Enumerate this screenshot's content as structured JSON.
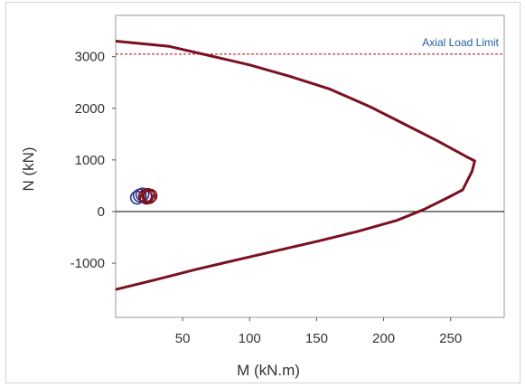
{
  "chart_data": {
    "type": "line",
    "xlabel": "M (kN.m)",
    "ylabel": "N (kN)",
    "xlim": [
      0,
      290
    ],
    "ylim": [
      -2050,
      3800
    ],
    "xticks": [
      50,
      100,
      150,
      200,
      250
    ],
    "xtick_labels": [
      "50",
      "100",
      "150",
      "200",
      "250"
    ],
    "yticks": [
      3000,
      2000,
      1000,
      0,
      -1000
    ],
    "ytick_labels": [
      "3000",
      "2000",
      "1000",
      "0",
      "-1000"
    ],
    "grid": false,
    "legend": "none",
    "series": [
      {
        "kind": "interaction_curve",
        "color": "#7a1020",
        "points": [
          [
            0,
            3300
          ],
          [
            40,
            3200
          ],
          [
            70,
            3020
          ],
          [
            100,
            2840
          ],
          [
            130,
            2620
          ],
          [
            160,
            2370
          ],
          [
            190,
            2030
          ],
          [
            215,
            1700
          ],
          [
            240,
            1370
          ],
          [
            262,
            1060
          ],
          [
            268,
            980
          ],
          [
            266,
            780
          ],
          [
            259,
            420
          ],
          [
            248,
            270
          ],
          [
            230,
            40
          ],
          [
            210,
            -170
          ],
          [
            180,
            -390
          ],
          [
            150,
            -580
          ],
          [
            120,
            -760
          ],
          [
            90,
            -940
          ],
          [
            60,
            -1120
          ],
          [
            30,
            -1320
          ],
          [
            0,
            -1510
          ]
        ]
      },
      {
        "kind": "load_points",
        "marker": "circle",
        "points": [
          {
            "x": 16,
            "y": 270,
            "color": "#27358c"
          },
          {
            "x": 18,
            "y": 310,
            "color": "#27358c"
          },
          {
            "x": 20,
            "y": 330,
            "color": "#27358c"
          },
          {
            "x": 22,
            "y": 300,
            "color": "#7a1020"
          },
          {
            "x": 23,
            "y": 270,
            "color": "#7a1020"
          },
          {
            "x": 24,
            "y": 320,
            "color": "#7a1020"
          },
          {
            "x": 25,
            "y": 280,
            "color": "#7a1020"
          },
          {
            "x": 26,
            "y": 305,
            "color": "#7a1020"
          }
        ]
      }
    ],
    "reference_lines": [
      {
        "axis": "y",
        "value": 3050,
        "label": "Axial Load Limit",
        "color": "#c00000",
        "label_color": "#1f5fa8",
        "style": "dashed"
      },
      {
        "axis": "y",
        "value": 0,
        "label": "",
        "color": "#222222",
        "style": "solid"
      }
    ],
    "colors": {
      "curve": "#7a1020",
      "points_primary": "#27358c",
      "points_secondary": "#7a1020"
    }
  }
}
